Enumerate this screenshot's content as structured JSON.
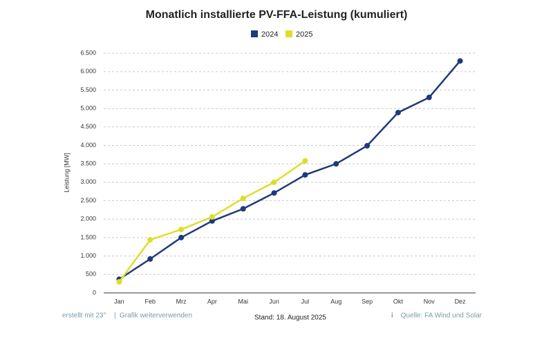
{
  "chart_data": {
    "type": "line",
    "title": "Monatlich installierte PV-FFA-Leistung (kumuliert)",
    "y_label": "Leistung [MW]",
    "categories": [
      "Jan",
      "Feb",
      "Mrz",
      "Apr",
      "Mai",
      "Jun",
      "Jul",
      "Aug",
      "Sep",
      "Okt",
      "Nov",
      "Dez"
    ],
    "series": [
      {
        "name": "2024",
        "color": "#1e3a7b",
        "values": [
          370,
          920,
          1500,
          1950,
          2280,
          2710,
          3200,
          3500,
          3990,
          4890,
          5300,
          6290
        ]
      },
      {
        "name": "2025",
        "color": "#dede2a",
        "values": [
          300,
          1440,
          1720,
          2060,
          2565,
          3000,
          3580,
          null,
          null,
          null,
          null,
          null
        ]
      }
    ],
    "ylim": [
      0,
      6500
    ],
    "yticks": [
      0,
      500,
      {
        "value": 1000,
        "label": "1.000"
      },
      {
        "value": 1500,
        "label": "1.500"
      },
      {
        "value": 2000,
        "label": "2.000"
      },
      {
        "value": 2500,
        "label": "2.500"
      },
      {
        "value": 3000,
        "label": "3.000"
      },
      {
        "value": 3500,
        "label": "3.500"
      },
      {
        "value": 4000,
        "label": "4.000"
      },
      {
        "value": 4500,
        "label": "4.500"
      },
      {
        "value": 5000,
        "label": "5.000"
      },
      {
        "value": 5500,
        "label": "5.500"
      },
      {
        "value": 6000,
        "label": "6.000"
      },
      {
        "value": 6500,
        "label": "6.500"
      }
    ],
    "grid": true,
    "legend": "top",
    "footer": {
      "credit": "erstellt mit 23°",
      "reuse": "Grafik  weiterverwenden",
      "date": "Stand: 18. August 2025",
      "source": "Quelle: FA Wind und Solar"
    }
  }
}
